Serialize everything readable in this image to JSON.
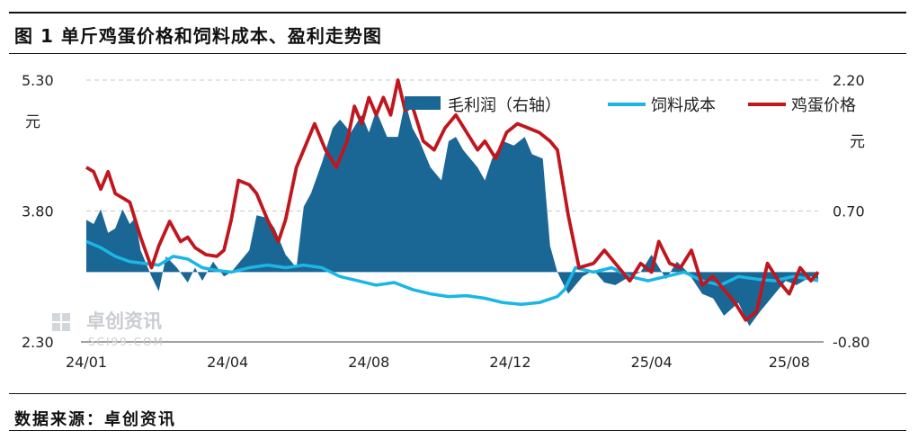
{
  "title": "图 1 单斤鸡蛋价格和饲料成本、盈利走势图",
  "source": "数据来源：卓创资讯",
  "watermark": {
    "name": "卓创资讯",
    "url": "SCI99.COM"
  },
  "colors": {
    "profit": "#1a6796",
    "feed": "#1ab6e6",
    "egg": "#c0161d",
    "grid": "#c8c8c8"
  },
  "chart_data": {
    "type": "line",
    "x_ticks": [
      "24/01",
      "24/04",
      "24/08",
      "24/12",
      "25/04",
      "25/08"
    ],
    "left_axis": {
      "ticks": [
        "5.30",
        "3.80",
        "2.30"
      ],
      "unit": "元",
      "range": [
        2.3,
        5.3
      ]
    },
    "right_axis": {
      "ticks": [
        "2.20",
        "0.70",
        "-0.80"
      ],
      "unit": "元",
      "range": [
        -0.8,
        2.2
      ]
    },
    "grid": "dashed horizontal",
    "legend": {
      "position": "top-right",
      "labels": [
        "毛利润（右轴）",
        "饲料成本",
        "鸡蛋价格"
      ]
    },
    "series": [
      {
        "name": "毛利润（右轴）",
        "kind": "area",
        "axis": "right",
        "x": [
          0,
          0.2,
          0.4,
          0.6,
          0.8,
          1.0,
          1.2,
          1.35,
          1.5,
          1.8,
          2.0,
          2.2,
          2.5,
          2.8,
          3.0,
          3.2,
          3.5,
          3.8,
          4.0,
          4.2,
          4.5,
          4.7,
          5.0,
          5.2,
          5.5,
          5.8,
          6.0,
          6.2,
          6.5,
          6.8,
          7.0,
          7.3,
          7.6,
          7.8,
          8.0,
          8.3,
          8.6,
          8.8,
          9.0,
          9.2,
          9.5,
          9.8,
          10.0,
          10.2,
          10.4,
          10.6,
          10.8,
          11.0,
          11.2,
          11.5,
          11.8,
          12.1,
          12.3,
          12.6,
          12.8,
          13.0,
          13.3,
          13.7,
          14.0,
          14.3,
          14.6,
          15.0,
          15.3,
          15.6,
          16.0,
          16.3,
          16.6,
          17.0,
          17.3,
          17.6,
          18.0,
          18.3,
          18.6,
          19.0,
          19.3,
          19.6,
          20.0,
          20.2
        ],
        "values": [
          0.6,
          0.55,
          0.72,
          0.45,
          0.5,
          0.72,
          0.55,
          0.62,
          0.25,
          -0.05,
          -0.22,
          0.18,
          0.05,
          -0.12,
          0.05,
          -0.1,
          0.12,
          -0.05,
          0.0,
          0.1,
          0.25,
          0.65,
          0.62,
          0.5,
          0.2,
          0.05,
          0.75,
          0.9,
          1.25,
          1.65,
          1.75,
          1.6,
          1.8,
          1.6,
          1.85,
          1.55,
          1.55,
          1.95,
          1.65,
          1.5,
          1.2,
          1.05,
          1.5,
          1.55,
          1.4,
          1.3,
          1.2,
          1.05,
          1.3,
          1.5,
          1.45,
          1.55,
          1.35,
          1.3,
          0.3,
          0.0,
          -0.25,
          -0.05,
          0.02,
          -0.12,
          -0.15,
          -0.05,
          0.0,
          0.2,
          -0.08,
          0.12,
          0.0,
          -0.25,
          -0.3,
          -0.5,
          -0.35,
          -0.62,
          -0.45,
          -0.25,
          -0.1,
          -0.15,
          -0.05,
          -0.08
        ]
      },
      {
        "name": "饲料成本",
        "kind": "line",
        "axis": "left",
        "x": [
          0,
          0.4,
          0.8,
          1.2,
          1.6,
          2.0,
          2.4,
          2.8,
          3.2,
          3.6,
          4.0,
          4.5,
          5.0,
          5.5,
          6.0,
          6.5,
          7.0,
          7.5,
          8.0,
          8.5,
          9.0,
          9.5,
          10.0,
          10.5,
          11.0,
          11.5,
          12.0,
          12.5,
          13.0,
          13.2,
          13.5,
          14.0,
          14.5,
          15.0,
          15.5,
          16.0,
          16.5,
          17.0,
          17.5,
          18.0,
          18.5,
          19.0,
          19.5,
          20.0,
          20.2
        ],
        "values": [
          3.45,
          3.38,
          3.28,
          3.22,
          3.2,
          3.18,
          3.28,
          3.25,
          3.15,
          3.12,
          3.1,
          3.15,
          3.18,
          3.15,
          3.18,
          3.15,
          3.05,
          3.0,
          2.95,
          2.98,
          2.9,
          2.85,
          2.82,
          2.83,
          2.8,
          2.75,
          2.73,
          2.75,
          2.82,
          2.9,
          3.15,
          3.1,
          3.15,
          3.05,
          3.0,
          3.05,
          3.1,
          3.0,
          2.95,
          3.05,
          3.02,
          3.0,
          3.05,
          3.02,
          3.0
        ]
      },
      {
        "name": "鸡蛋价格",
        "kind": "line",
        "axis": "left",
        "x": [
          0,
          0.2,
          0.4,
          0.6,
          0.8,
          1.0,
          1.2,
          1.5,
          1.8,
          2.0,
          2.3,
          2.6,
          2.8,
          3.0,
          3.3,
          3.6,
          3.8,
          4.0,
          4.2,
          4.5,
          4.7,
          5.0,
          5.3,
          5.5,
          5.8,
          6.0,
          6.3,
          6.6,
          6.9,
          7.2,
          7.4,
          7.6,
          7.8,
          8.0,
          8.2,
          8.4,
          8.6,
          8.8,
          9.0,
          9.3,
          9.6,
          9.9,
          10.2,
          10.5,
          10.8,
          11.0,
          11.3,
          11.6,
          11.9,
          12.2,
          12.5,
          12.8,
          13.0,
          13.3,
          13.6,
          14.0,
          14.3,
          14.6,
          15.0,
          15.3,
          15.6,
          15.8,
          16.1,
          16.4,
          16.7,
          17.0,
          17.3,
          17.6,
          17.9,
          18.2,
          18.5,
          18.8,
          19.1,
          19.4,
          19.7,
          20.0,
          20.2
        ],
        "values": [
          4.3,
          4.25,
          4.05,
          4.25,
          4.0,
          3.95,
          3.9,
          3.5,
          3.15,
          3.4,
          3.68,
          3.45,
          3.5,
          3.38,
          3.3,
          3.28,
          3.35,
          3.7,
          4.15,
          4.1,
          4.0,
          3.7,
          3.45,
          3.7,
          4.3,
          4.5,
          4.8,
          4.5,
          4.3,
          4.6,
          5.0,
          4.8,
          5.1,
          4.9,
          5.1,
          4.9,
          5.3,
          4.95,
          5.0,
          4.6,
          4.5,
          4.75,
          4.9,
          4.7,
          4.5,
          4.6,
          4.4,
          4.7,
          4.8,
          4.75,
          4.7,
          4.6,
          4.5,
          3.75,
          3.15,
          3.2,
          3.35,
          3.2,
          3.0,
          3.2,
          3.1,
          3.45,
          3.2,
          3.15,
          3.35,
          2.95,
          3.05,
          2.9,
          2.75,
          2.55,
          2.65,
          3.2,
          3.0,
          2.85,
          3.15,
          3.0,
          3.1
        ]
      }
    ]
  }
}
